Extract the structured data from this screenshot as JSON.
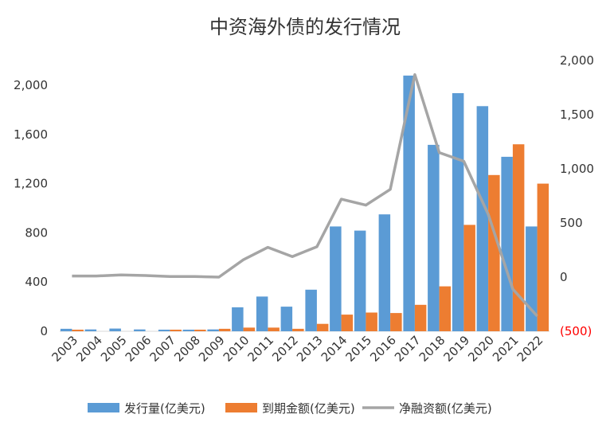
{
  "chart_data": {
    "type": "bar",
    "title": "中资海外债的发行情况",
    "categories": [
      "2003",
      "2004",
      "2005",
      "2006",
      "2007",
      "2008",
      "2009",
      "2010",
      "2011",
      "2012",
      "2013",
      "2014",
      "2015",
      "2016",
      "2017",
      "2018",
      "2019",
      "2020",
      "2021",
      "2022"
    ],
    "series": [
      {
        "name": "发行量(亿美元)",
        "type": "bar",
        "axis": "left",
        "color": "#5B9BD5",
        "values": [
          20,
          15,
          22,
          15,
          13,
          13,
          15,
          195,
          282,
          200,
          338,
          852,
          818,
          950,
          2078,
          1515,
          1935,
          1830,
          1418,
          852
        ]
      },
      {
        "name": "到期金额(亿美元)",
        "type": "bar",
        "axis": "left",
        "color": "#ED7D31",
        "values": [
          13,
          0,
          0,
          0,
          13,
          13,
          20,
          30,
          30,
          20,
          60,
          135,
          152,
          148,
          215,
          365,
          865,
          1270,
          1520,
          1200
        ]
      },
      {
        "name": "净融资额(亿美元)",
        "type": "line",
        "axis": "right",
        "color": "#A5A5A5",
        "values": [
          10,
          10,
          20,
          15,
          5,
          5,
          0,
          160,
          275,
          190,
          280,
          720,
          665,
          810,
          1870,
          1150,
          1070,
          580,
          -110,
          -360
        ]
      }
    ],
    "left_axis": {
      "min": 0,
      "max": 2000,
      "ticks": [
        0,
        400,
        800,
        1200,
        1600,
        2000
      ],
      "tick_labels": [
        "0",
        "400",
        "800",
        "1,200",
        "1,600",
        "2,000"
      ]
    },
    "right_axis": {
      "min": -500,
      "max": 2000,
      "ticks": [
        -500,
        0,
        500,
        1000,
        1500,
        2000
      ],
      "tick_labels": [
        "(500)",
        "0",
        "500",
        "1,000",
        "1,500",
        "2,000"
      ],
      "negative_color": "#FF0000"
    },
    "grid": false,
    "legend_position": "bottom"
  }
}
